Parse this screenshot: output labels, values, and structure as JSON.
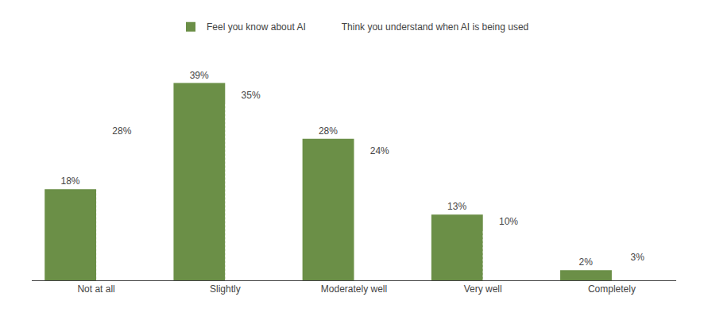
{
  "chart_data": {
    "type": "bar",
    "categories": [
      "Not at all",
      "Slightly",
      "Moderately well",
      "Very well",
      "Completely"
    ],
    "series": [
      {
        "name": "Feel you know about AI",
        "color": "#6b8f47",
        "values": [
          18,
          39,
          28,
          13,
          2
        ],
        "value_labels": [
          "18%",
          "39%",
          "28%",
          "13%",
          "2%"
        ]
      },
      {
        "name": "Think you understand when AI is being used",
        "color": "#f5c07a",
        "values": [
          28,
          35,
          24,
          10,
          3
        ],
        "value_labels": [
          "28%",
          "35%",
          "24%",
          "10%",
          "3%"
        ]
      }
    ],
    "ylim": [
      0,
      46
    ],
    "yticks": [],
    "tick_labels": "x",
    "grid": false,
    "legend": "top",
    "data_labels": true
  }
}
